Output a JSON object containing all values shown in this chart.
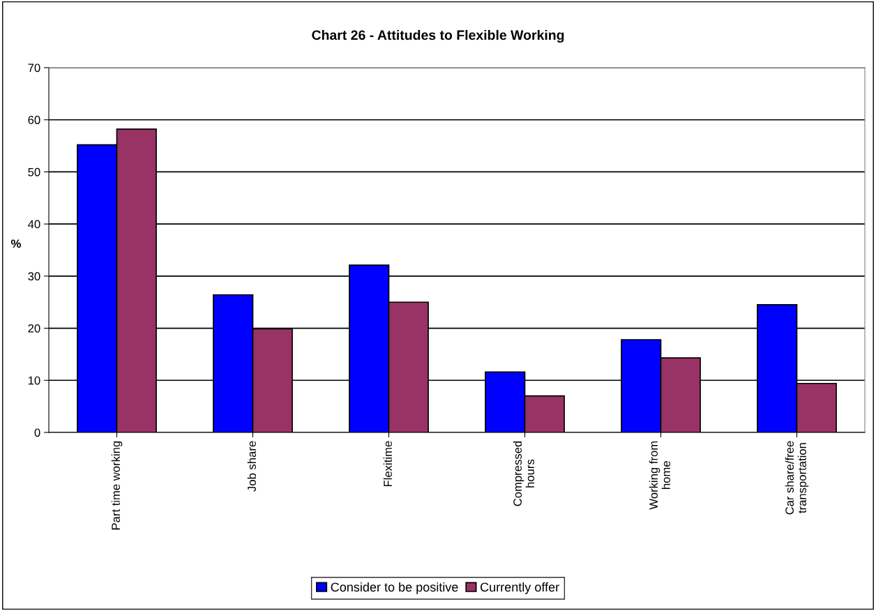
{
  "chart_data": {
    "type": "bar",
    "title": "Chart 26 - Attitudes to Flexible Working",
    "ylabel": "%",
    "categories": [
      "Part time working",
      "Job share",
      "Flexitime",
      "Compressed\nhours",
      "Working from\nhome",
      "Car share/free\ntransportation"
    ],
    "series": [
      {
        "name": "Consider to be positive",
        "color": "#0000ff",
        "values": [
          55.2,
          26.4,
          32.1,
          11.6,
          17.8,
          24.5
        ]
      },
      {
        "name": "Currently offer",
        "color": "#993366",
        "values": [
          58.2,
          19.9,
          25,
          7,
          14.3,
          9.4
        ]
      }
    ],
    "ylim": [
      0,
      70
    ],
    "yticks": [
      0,
      10,
      20,
      30,
      40,
      50,
      60,
      70
    ],
    "grid": "y",
    "legend": "bottom"
  }
}
